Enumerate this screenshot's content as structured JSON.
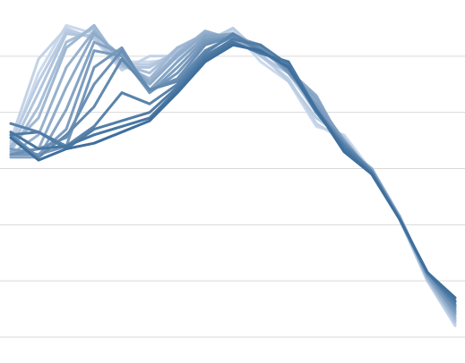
{
  "chart_data": {
    "type": "line",
    "title": "",
    "xlabel": "",
    "ylabel": "",
    "grid": true,
    "legend": "none",
    "x": [
      0,
      1,
      2,
      3,
      4,
      5,
      6,
      7,
      8,
      9,
      10,
      11,
      12,
      13,
      14,
      15,
      16
    ],
    "ylim": [
      0,
      6
    ],
    "yticks": [
      0,
      1,
      2,
      3,
      4,
      5
    ],
    "colors": {
      "lightest": "#cbd9ec",
      "darkest": "#3f6f9c",
      "grid": "#d9d9d9"
    },
    "series": [
      {
        "values": [
          3.4,
          4.7,
          5.55,
          5.4,
          4.9,
          4.9,
          4.95,
          5.3,
          5.45,
          4.9,
          4.55,
          3.75,
          3.6,
          2.95,
          2.1,
          1.0,
          0.2
        ]
      },
      {
        "values": [
          3.5,
          4.95,
          5.5,
          5.3,
          4.75,
          5.0,
          5.0,
          5.2,
          5.4,
          5.0,
          4.6,
          3.8,
          3.5,
          2.95,
          2.1,
          1.0,
          0.22
        ]
      },
      {
        "values": [
          3.45,
          4.55,
          5.45,
          5.35,
          4.85,
          4.85,
          5.05,
          5.25,
          5.5,
          5.05,
          4.55,
          3.9,
          3.55,
          2.9,
          2.1,
          1.0,
          0.25
        ]
      },
      {
        "values": [
          3.35,
          4.35,
          5.4,
          5.35,
          4.8,
          4.8,
          5.1,
          5.35,
          5.4,
          5.0,
          4.7,
          4.0,
          3.55,
          2.9,
          2.15,
          1.05,
          0.28
        ]
      },
      {
        "values": [
          3.3,
          4.1,
          5.25,
          5.5,
          4.85,
          4.7,
          5.15,
          5.35,
          5.35,
          5.1,
          4.75,
          4.1,
          3.5,
          2.9,
          2.15,
          1.05,
          0.3
        ]
      },
      {
        "values": [
          3.4,
          3.9,
          5.15,
          5.55,
          4.85,
          4.6,
          5.15,
          5.4,
          5.3,
          5.15,
          4.8,
          4.15,
          3.45,
          2.95,
          2.15,
          1.05,
          0.33
        ]
      },
      {
        "values": [
          3.25,
          3.6,
          4.8,
          5.45,
          4.9,
          4.55,
          5.05,
          5.45,
          5.3,
          5.1,
          4.8,
          4.2,
          3.5,
          2.95,
          2.15,
          1.05,
          0.36
        ]
      },
      {
        "values": [
          3.3,
          3.35,
          4.45,
          5.4,
          5.0,
          4.5,
          5.0,
          5.4,
          5.35,
          5.1,
          4.75,
          4.3,
          3.4,
          3.0,
          2.15,
          1.1,
          0.4
        ]
      },
      {
        "values": [
          3.2,
          3.2,
          4.05,
          5.25,
          5.05,
          4.4,
          4.9,
          5.35,
          5.4,
          5.15,
          4.7,
          4.25,
          3.45,
          2.95,
          2.15,
          1.1,
          0.42
        ]
      },
      {
        "values": [
          3.35,
          3.25,
          3.7,
          5.1,
          5.0,
          4.35,
          4.8,
          5.3,
          5.35,
          5.2,
          4.7,
          4.15,
          3.5,
          2.9,
          2.1,
          1.1,
          0.45
        ]
      },
      {
        "values": [
          3.25,
          3.25,
          3.4,
          4.8,
          5.15,
          4.35,
          4.7,
          5.25,
          5.35,
          5.15,
          4.75,
          4.1,
          3.4,
          2.95,
          2.1,
          1.1,
          0.48
        ]
      },
      {
        "values": [
          3.25,
          3.35,
          3.55,
          4.5,
          5.1,
          4.4,
          4.6,
          5.2,
          5.35,
          5.15,
          4.75,
          4.05,
          3.45,
          2.9,
          2.1,
          1.15,
          0.52
        ]
      },
      {
        "values": [
          3.6,
          3.2,
          3.6,
          4.1,
          4.95,
          4.4,
          4.55,
          5.1,
          5.35,
          5.1,
          4.8,
          4.05,
          3.45,
          2.95,
          2.1,
          1.15,
          0.55
        ]
      },
      {
        "values": [
          3.8,
          3.65,
          3.4,
          3.75,
          4.35,
          4.15,
          4.5,
          5.05,
          5.4,
          5.1,
          4.8,
          4.0,
          3.4,
          2.95,
          2.1,
          1.15,
          0.58
        ]
      },
      {
        "values": [
          3.6,
          3.65,
          3.35,
          3.7,
          3.85,
          4.0,
          4.45,
          5.0,
          5.3,
          5.2,
          4.85,
          4.0,
          3.4,
          2.9,
          2.1,
          1.15,
          0.62
        ]
      },
      {
        "values": [
          3.65,
          3.35,
          3.4,
          3.6,
          3.75,
          3.9,
          4.4,
          4.95,
          5.25,
          5.05,
          4.9,
          4.05,
          3.35,
          2.9,
          2.1,
          1.15,
          0.65
        ]
      },
      {
        "values": [
          3.55,
          3.15,
          3.35,
          3.45,
          3.65,
          3.85,
          4.35,
          4.9,
          5.2,
          5.1,
          4.8,
          4.05,
          3.3,
          2.9,
          2.1,
          1.15,
          0.7
        ]
      }
    ]
  }
}
